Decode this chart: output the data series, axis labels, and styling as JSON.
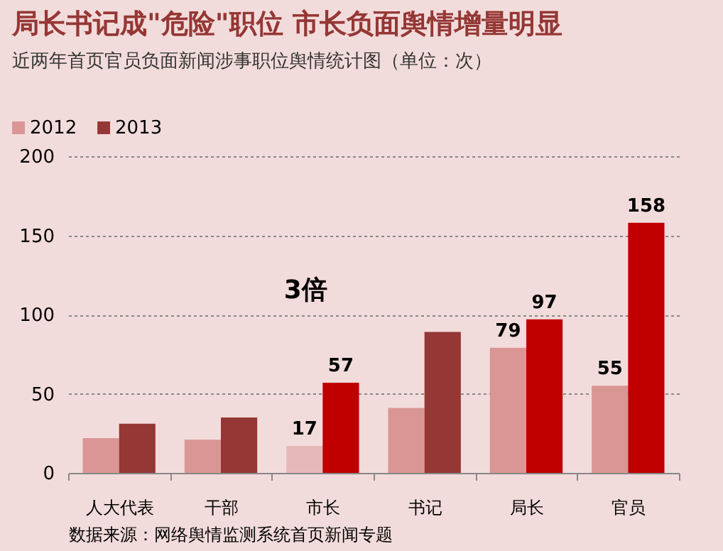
{
  "chart_data": {
    "type": "bar",
    "title": "局长书记成\"危险\"职位  市长负面舆情增量明显",
    "subtitle": "近两年首页官员负面新闻涉事职位舆情统计图（单位：次）",
    "categories": [
      "人大代表",
      "干部",
      "市长",
      "书记",
      "局长",
      "官员"
    ],
    "series": [
      {
        "name": "2012",
        "color": "#d99694",
        "values": [
          22,
          21,
          17,
          41,
          79,
          55
        ],
        "colors": [
          "#d99694",
          "#d99694",
          "#e6b9b8",
          "#d99694",
          "#d99694",
          "#d99694"
        ],
        "value_labels": [
          null,
          null,
          "17",
          null,
          "79",
          "55"
        ]
      },
      {
        "name": "2013",
        "color": "#953735",
        "values": [
          31,
          35,
          57,
          89,
          97,
          158
        ],
        "colors": [
          "#953735",
          "#953735",
          "#c00000",
          "#953735",
          "#c00000",
          "#c00000"
        ],
        "value_labels": [
          null,
          null,
          "57",
          null,
          "97",
          "158"
        ]
      }
    ],
    "ylim": [
      0,
      200
    ],
    "yticks": [
      0,
      50,
      100,
      150,
      200
    ],
    "grid": "y",
    "legend": "top left",
    "annotations": [
      "3倍",
      "数据来源：网络舆情监测系统首页新闻专题"
    ]
  }
}
